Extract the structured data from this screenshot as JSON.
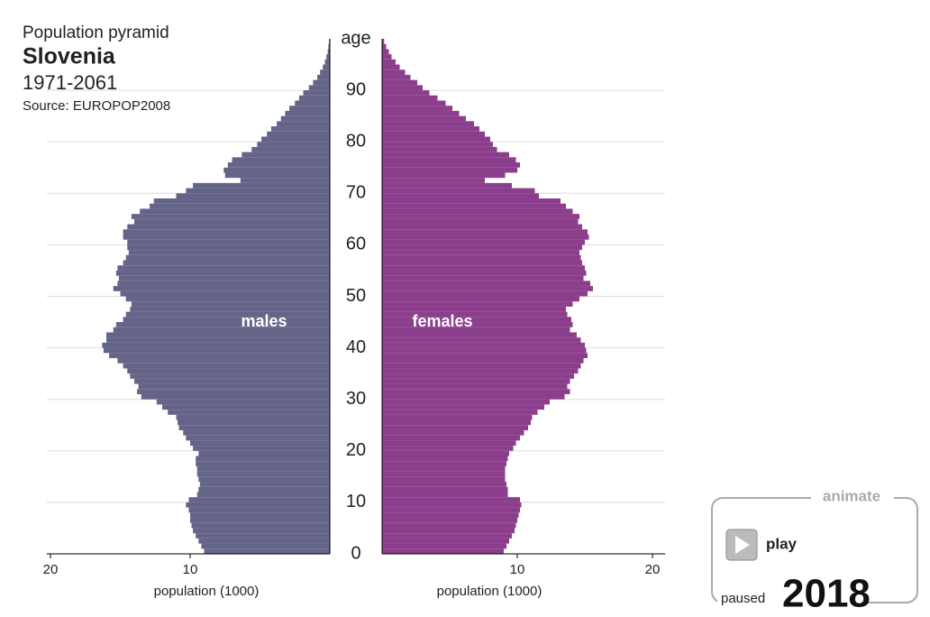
{
  "chart_data": {
    "type": "pyramid",
    "header": "Population pyramid",
    "title": "Slovenia",
    "subtitle": "1971-2061",
    "source": "Source: EUROPOP2008",
    "y_label": "age",
    "x_label": "population (1000)",
    "y": [
      0,
      1,
      2,
      3,
      4,
      5,
      6,
      7,
      8,
      9,
      10,
      11,
      12,
      13,
      14,
      15,
      16,
      17,
      18,
      19,
      20,
      21,
      22,
      23,
      24,
      25,
      26,
      27,
      28,
      29,
      30,
      31,
      32,
      33,
      34,
      35,
      36,
      37,
      38,
      39,
      40,
      41,
      42,
      43,
      44,
      45,
      46,
      47,
      48,
      49,
      50,
      51,
      52,
      53,
      54,
      55,
      56,
      57,
      58,
      59,
      60,
      61,
      62,
      63,
      64,
      65,
      66,
      67,
      68,
      69,
      70,
      71,
      72,
      73,
      74,
      75,
      76,
      77,
      78,
      79,
      80,
      81,
      82,
      83,
      84,
      85,
      86,
      87,
      88,
      89,
      90,
      91,
      92,
      93,
      94,
      95,
      96,
      97,
      98,
      99
    ],
    "series": [
      {
        "name": "males",
        "color": "#646488",
        "values": [
          9.0,
          9.2,
          9.4,
          9.6,
          9.8,
          9.9,
          10.0,
          10.0,
          10.1,
          10.3,
          10.1,
          9.5,
          9.4,
          9.3,
          9.4,
          9.5,
          9.5,
          9.6,
          9.6,
          9.4,
          9.8,
          10.0,
          10.3,
          10.5,
          10.8,
          10.9,
          11.0,
          11.6,
          12.0,
          12.4,
          13.5,
          13.8,
          13.7,
          14.0,
          14.3,
          14.5,
          14.8,
          15.2,
          15.8,
          16.2,
          16.3,
          16.0,
          16.0,
          15.5,
          15.3,
          14.8,
          14.6,
          14.3,
          14.2,
          14.6,
          15.0,
          15.5,
          15.2,
          15.1,
          15.3,
          15.2,
          14.8,
          14.6,
          14.4,
          14.5,
          14.5,
          14.8,
          14.8,
          14.5,
          14.0,
          14.2,
          13.6,
          12.9,
          12.6,
          11.0,
          10.3,
          9.8,
          6.4,
          7.5,
          7.6,
          7.3,
          7.0,
          6.3,
          5.6,
          5.2,
          4.9,
          4.5,
          4.2,
          3.8,
          3.5,
          3.2,
          2.9,
          2.5,
          2.2,
          1.9,
          1.5,
          1.2,
          0.9,
          0.7,
          0.5,
          0.35,
          0.25,
          0.15,
          0.1,
          0.05
        ]
      },
      {
        "name": "females",
        "color": "#8b3e8b",
        "values": [
          9.0,
          9.2,
          9.4,
          9.6,
          9.8,
          9.9,
          10.0,
          10.1,
          10.2,
          10.3,
          10.2,
          9.3,
          9.3,
          9.2,
          9.1,
          9.1,
          9.1,
          9.2,
          9.3,
          9.4,
          9.7,
          9.9,
          10.2,
          10.5,
          10.8,
          11.0,
          11.1,
          11.5,
          12.0,
          12.4,
          13.5,
          13.9,
          13.7,
          13.9,
          14.2,
          14.5,
          14.7,
          14.9,
          15.2,
          15.1,
          15.0,
          14.7,
          14.4,
          13.9,
          14.1,
          14.0,
          13.7,
          13.6,
          14.1,
          14.6,
          15.2,
          15.6,
          15.4,
          14.9,
          15.1,
          15.0,
          14.8,
          14.7,
          14.6,
          14.8,
          15.0,
          15.3,
          15.2,
          14.8,
          14.5,
          14.6,
          14.1,
          13.6,
          13.2,
          11.6,
          11.3,
          9.6,
          7.6,
          9.1,
          10.0,
          10.2,
          9.9,
          9.4,
          8.5,
          8.2,
          8.0,
          7.6,
          7.2,
          6.8,
          6.2,
          5.7,
          5.2,
          4.7,
          4.1,
          3.5,
          3.0,
          2.6,
          2.1,
          1.7,
          1.3,
          1.0,
          0.7,
          0.5,
          0.3,
          0.15
        ]
      }
    ],
    "ylim": [
      0,
      100
    ],
    "yticks": [
      0,
      10,
      20,
      30,
      40,
      50,
      60,
      70,
      80,
      90
    ],
    "xlim": [
      0,
      20
    ],
    "xticks": [
      10,
      20
    ],
    "grid": true
  },
  "controls": {
    "legend": "animate",
    "button": "play",
    "status": "paused",
    "year": 2018
  }
}
